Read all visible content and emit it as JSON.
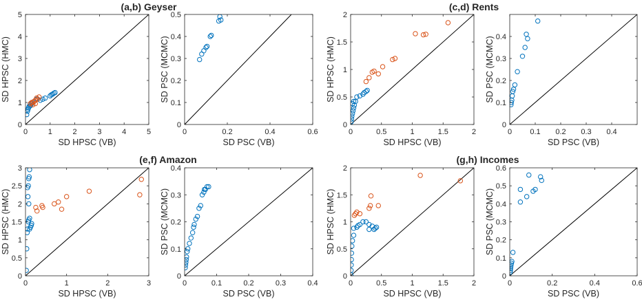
{
  "colors": {
    "blue": "#0072BD",
    "orange": "#D95319",
    "axis": "#262626"
  },
  "chart_data": [
    {
      "type": "scatter",
      "title": "(a,b) Geyser",
      "xlabel": "SD HPSC (VB)",
      "ylabel": "SD HPSC (HMC)",
      "xlim": [
        0,
        5
      ],
      "ylim": [
        0,
        5
      ],
      "xticks": [
        0,
        1,
        2,
        3,
        4,
        5
      ],
      "xtick_labels": [
        "0",
        "1",
        "2",
        "3",
        "4",
        "5"
      ],
      "yticks": [
        0,
        1,
        2,
        3,
        4,
        5
      ],
      "ytick_labels": [
        "0",
        "1",
        "2",
        "3",
        "4",
        "5"
      ],
      "diagonal": true,
      "series": [
        {
          "name": "blue",
          "color": "#0072BD",
          "points": [
            [
              0.05,
              0.45
            ],
            [
              0.08,
              0.6
            ],
            [
              0.1,
              0.68
            ],
            [
              0.12,
              0.75
            ],
            [
              0.15,
              0.82
            ],
            [
              0.18,
              0.9
            ],
            [
              0.2,
              0.85
            ],
            [
              0.25,
              0.95
            ],
            [
              0.6,
              1.1
            ],
            [
              0.7,
              1.15
            ],
            [
              0.8,
              1.2
            ],
            [
              1.0,
              1.3
            ],
            [
              1.05,
              1.35
            ],
            [
              1.1,
              1.38
            ],
            [
              1.15,
              1.42
            ],
            [
              1.2,
              1.45
            ],
            [
              0.45,
              1.15
            ],
            [
              0.35,
              1.05
            ]
          ]
        },
        {
          "name": "orange",
          "color": "#D95319",
          "points": [
            [
              0.2,
              0.95
            ],
            [
              0.25,
              1.0
            ],
            [
              0.3,
              0.9
            ],
            [
              0.35,
              1.05
            ],
            [
              0.4,
              1.1
            ],
            [
              0.45,
              1.2
            ],
            [
              0.5,
              1.15
            ],
            [
              0.55,
              1.25
            ],
            [
              0.4,
              0.95
            ],
            [
              0.3,
              1.0
            ]
          ]
        }
      ]
    },
    {
      "type": "scatter",
      "title": "",
      "xlabel": "SD PSC (VB)",
      "ylabel": "SD PSC (MCMC)",
      "xlim": [
        0,
        0.6
      ],
      "ylim": [
        0,
        0.5
      ],
      "xticks": [
        0,
        0.2,
        0.4,
        0.6
      ],
      "xtick_labels": [
        "0",
        "0.2",
        "0.4",
        "0.6"
      ],
      "yticks": [
        0,
        0.1,
        0.2,
        0.3,
        0.4,
        0.5
      ],
      "ytick_labels": [
        "0",
        "0.1",
        "0.2",
        "0.3",
        "0.4",
        "0.5"
      ],
      "diagonal": true,
      "series": [
        {
          "name": "blue",
          "color": "#0072BD",
          "points": [
            [
              0.07,
              0.295
            ],
            [
              0.08,
              0.32
            ],
            [
              0.09,
              0.335
            ],
            [
              0.1,
              0.35
            ],
            [
              0.105,
              0.355
            ],
            [
              0.12,
              0.4
            ],
            [
              0.125,
              0.405
            ],
            [
              0.16,
              0.47
            ],
            [
              0.165,
              0.49
            ],
            [
              0.17,
              0.475
            ]
          ]
        }
      ]
    },
    {
      "type": "scatter",
      "title": "(c,d) Rents",
      "xlabel": "SD HPSC (VB)",
      "ylabel": "SD HPSC (HMC)",
      "xlim": [
        0,
        2
      ],
      "ylim": [
        0,
        2
      ],
      "xticks": [
        0,
        0.5,
        1,
        1.5,
        2
      ],
      "xtick_labels": [
        "0",
        "0.5",
        "1",
        "1.5",
        "2"
      ],
      "yticks": [
        0,
        0.5,
        1,
        1.5,
        2
      ],
      "ytick_labels": [
        "0",
        "0.5",
        "1",
        "1.5",
        "2"
      ],
      "diagonal": true,
      "series": [
        {
          "name": "blue",
          "color": "#0072BD",
          "points": [
            [
              0.01,
              0.05
            ],
            [
              0.015,
              0.1
            ],
            [
              0.02,
              0.15
            ],
            [
              0.03,
              0.2
            ],
            [
              0.04,
              0.25
            ],
            [
              0.05,
              0.3
            ],
            [
              0.06,
              0.35
            ],
            [
              0.08,
              0.42
            ],
            [
              0.1,
              0.5
            ],
            [
              0.15,
              0.52
            ],
            [
              0.2,
              0.55
            ],
            [
              0.22,
              0.58
            ],
            [
              0.25,
              0.6
            ],
            [
              0.27,
              0.62
            ],
            [
              0.05,
              0.42
            ],
            [
              0.03,
              0.38
            ]
          ]
        },
        {
          "name": "orange",
          "color": "#D95319",
          "points": [
            [
              0.25,
              0.78
            ],
            [
              0.3,
              0.85
            ],
            [
              0.35,
              0.95
            ],
            [
              0.38,
              0.97
            ],
            [
              0.45,
              0.92
            ],
            [
              0.52,
              1.05
            ],
            [
              0.68,
              1.18
            ],
            [
              0.72,
              1.2
            ],
            [
              1.05,
              1.65
            ],
            [
              1.18,
              1.63
            ],
            [
              1.22,
              1.64
            ],
            [
              1.58,
              1.85
            ]
          ]
        }
      ]
    },
    {
      "type": "scatter",
      "title": "",
      "xlabel": "SD PSC (VB)",
      "ylabel": "SD PSC (MCMC)",
      "xlim": [
        0,
        0.5
      ],
      "ylim": [
        0,
        0.5
      ],
      "xticks": [
        0,
        0.1,
        0.2,
        0.3,
        0.4
      ],
      "xtick_labels": [
        "0",
        "0.1",
        "0.2",
        "0.3",
        "0.4"
      ],
      "yticks": [
        0,
        0.1,
        0.2,
        0.3,
        0.4
      ],
      "ytick_labels": [
        "0",
        "0.1",
        "0.2",
        "0.3",
        "0.4"
      ],
      "diagonal": true,
      "series": [
        {
          "name": "blue",
          "color": "#0072BD",
          "points": [
            [
              0.005,
              0.09
            ],
            [
              0.006,
              0.1
            ],
            [
              0.008,
              0.11
            ],
            [
              0.01,
              0.13
            ],
            [
              0.012,
              0.15
            ],
            [
              0.015,
              0.16
            ],
            [
              0.02,
              0.18
            ],
            [
              0.03,
              0.24
            ],
            [
              0.05,
              0.31
            ],
            [
              0.06,
              0.35
            ],
            [
              0.065,
              0.41
            ],
            [
              0.07,
              0.39
            ],
            [
              0.11,
              0.47
            ]
          ]
        }
      ]
    },
    {
      "type": "scatter",
      "title": "(e,f) Amazon",
      "xlabel": "SD HPSC (VB)",
      "ylabel": "SD HPSC (HMC)",
      "xlim": [
        0,
        3
      ],
      "ylim": [
        0,
        3
      ],
      "xticks": [
        0,
        1,
        2,
        3
      ],
      "xtick_labels": [
        "0",
        "1",
        "2",
        "3"
      ],
      "yticks": [
        0,
        0.5,
        1,
        1.5,
        2,
        2.5,
        3
      ],
      "ytick_labels": [
        "0",
        "0.5",
        "1",
        "1.5",
        "2",
        "2.5",
        "3"
      ],
      "diagonal": true,
      "series": [
        {
          "name": "blue",
          "color": "#0072BD",
          "points": [
            [
              0.02,
              0.15
            ],
            [
              0.03,
              0.75
            ],
            [
              0.04,
              1.2
            ],
            [
              0.05,
              1.3
            ],
            [
              0.07,
              1.5
            ],
            [
              0.08,
              1.55
            ],
            [
              0.1,
              1.6
            ],
            [
              0.12,
              1.35
            ],
            [
              0.14,
              1.4
            ],
            [
              0.15,
              1.45
            ],
            [
              0.1,
              1.3
            ],
            [
              0.08,
              2.0
            ],
            [
              0.06,
              2.2
            ],
            [
              0.05,
              2.45
            ],
            [
              0.07,
              2.5
            ],
            [
              0.08,
              2.7
            ],
            [
              0.09,
              2.75
            ],
            [
              0.1,
              2.95
            ]
          ]
        },
        {
          "name": "orange",
          "color": "#D95319",
          "points": [
            [
              0.25,
              1.9
            ],
            [
              0.28,
              1.8
            ],
            [
              0.4,
              1.95
            ],
            [
              0.42,
              1.9
            ],
            [
              0.7,
              2.0
            ],
            [
              0.8,
              2.05
            ],
            [
              0.88,
              1.85
            ],
            [
              1.0,
              2.2
            ],
            [
              1.55,
              2.35
            ],
            [
              2.78,
              2.25
            ],
            [
              2.82,
              2.68
            ]
          ]
        }
      ]
    },
    {
      "type": "scatter",
      "title": "",
      "xlabel": "SD PSC (VB)",
      "ylabel": "SD PSC (MCMC)",
      "xlim": [
        0,
        0.4
      ],
      "ylim": [
        0,
        0.4
      ],
      "xticks": [
        0,
        0.1,
        0.2,
        0.3,
        0.4
      ],
      "xtick_labels": [
        "0",
        "0.1",
        "0.2",
        "0.3",
        "0.4"
      ],
      "yticks": [
        0,
        0.1,
        0.2,
        0.3,
        0.4
      ],
      "ytick_labels": [
        "0",
        "0.1",
        "0.2",
        "0.3",
        "0.4"
      ],
      "diagonal": true,
      "series": [
        {
          "name": "blue",
          "color": "#0072BD",
          "points": [
            [
              0.002,
              0.03
            ],
            [
              0.003,
              0.04
            ],
            [
              0.004,
              0.05
            ],
            [
              0.005,
              0.06
            ],
            [
              0.006,
              0.07
            ],
            [
              0.008,
              0.09
            ],
            [
              0.01,
              0.1
            ],
            [
              0.015,
              0.12
            ],
            [
              0.02,
              0.14
            ],
            [
              0.025,
              0.16
            ],
            [
              0.028,
              0.18
            ],
            [
              0.03,
              0.19
            ],
            [
              0.035,
              0.21
            ],
            [
              0.04,
              0.22
            ],
            [
              0.045,
              0.25
            ],
            [
              0.05,
              0.26
            ],
            [
              0.055,
              0.3
            ],
            [
              0.06,
              0.31
            ],
            [
              0.062,
              0.32
            ],
            [
              0.065,
              0.32
            ],
            [
              0.07,
              0.33
            ],
            [
              0.075,
              0.33
            ]
          ]
        }
      ]
    },
    {
      "type": "scatter",
      "title": "(g,h) Incomes",
      "xlabel": "SD HPSC (VB)",
      "ylabel": "SD HPSC (HMC)",
      "xlim": [
        0,
        2
      ],
      "ylim": [
        0,
        2
      ],
      "xticks": [
        0,
        0.5,
        1,
        1.5,
        2
      ],
      "xtick_labels": [
        "0",
        "0.5",
        "1",
        "1.5",
        "2"
      ],
      "yticks": [
        0,
        0.5,
        1,
        1.5,
        2
      ],
      "ytick_labels": [
        "0",
        "0.5",
        "1",
        "1.5",
        "2"
      ],
      "diagonal": true,
      "series": [
        {
          "name": "blue",
          "color": "#0072BD",
          "points": [
            [
              0.005,
              0.02
            ],
            [
              0.008,
              0.1
            ],
            [
              0.01,
              0.2
            ],
            [
              0.012,
              0.3
            ],
            [
              0.015,
              0.42
            ],
            [
              0.02,
              0.55
            ],
            [
              0.03,
              0.65
            ],
            [
              0.05,
              0.75
            ],
            [
              0.05,
              0.88
            ],
            [
              0.1,
              0.9
            ],
            [
              0.12,
              0.93
            ],
            [
              0.15,
              0.95
            ],
            [
              0.2,
              1.0
            ],
            [
              0.25,
              1.0
            ],
            [
              0.3,
              0.95
            ],
            [
              0.35,
              0.92
            ],
            [
              0.38,
              0.86
            ],
            [
              0.4,
              0.88
            ],
            [
              0.42,
              0.9
            ],
            [
              0.3,
              0.86
            ]
          ]
        },
        {
          "name": "orange",
          "color": "#D95319",
          "points": [
            [
              0.06,
              1.12
            ],
            [
              0.08,
              1.15
            ],
            [
              0.1,
              1.18
            ],
            [
              0.15,
              1.15
            ],
            [
              0.3,
              1.25
            ],
            [
              0.32,
              1.3
            ],
            [
              0.33,
              1.48
            ],
            [
              0.45,
              1.3
            ],
            [
              1.13,
              1.86
            ],
            [
              1.78,
              1.76
            ]
          ]
        }
      ]
    },
    {
      "type": "scatter",
      "title": "",
      "xlabel": "SD PSC (VB)",
      "ylabel": "SD PSC (MCMC)",
      "xlim": [
        0,
        0.6
      ],
      "ylim": [
        0,
        0.6
      ],
      "xticks": [
        0,
        0.2,
        0.4,
        0.6
      ],
      "xtick_labels": [
        "0",
        "0.2",
        "0.4",
        "0.6"
      ],
      "yticks": [
        0,
        0.1,
        0.2,
        0.3,
        0.4,
        0.5,
        0.6
      ],
      "ytick_labels": [
        "0",
        "0.1",
        "0.2",
        "0.3",
        "0.4",
        "0.5",
        "0.6"
      ],
      "diagonal": true,
      "series": [
        {
          "name": "blue",
          "color": "#0072BD",
          "points": [
            [
              0.002,
              0.02
            ],
            [
              0.003,
              0.03
            ],
            [
              0.004,
              0.04
            ],
            [
              0.005,
              0.05
            ],
            [
              0.006,
              0.06
            ],
            [
              0.008,
              0.07
            ],
            [
              0.01,
              0.08
            ],
            [
              0.015,
              0.13
            ],
            [
              0.05,
              0.41
            ],
            [
              0.05,
              0.48
            ],
            [
              0.08,
              0.44
            ],
            [
              0.09,
              0.56
            ],
            [
              0.11,
              0.47
            ],
            [
              0.12,
              0.48
            ],
            [
              0.145,
              0.55
            ],
            [
              0.15,
              0.53
            ]
          ]
        }
      ]
    }
  ]
}
